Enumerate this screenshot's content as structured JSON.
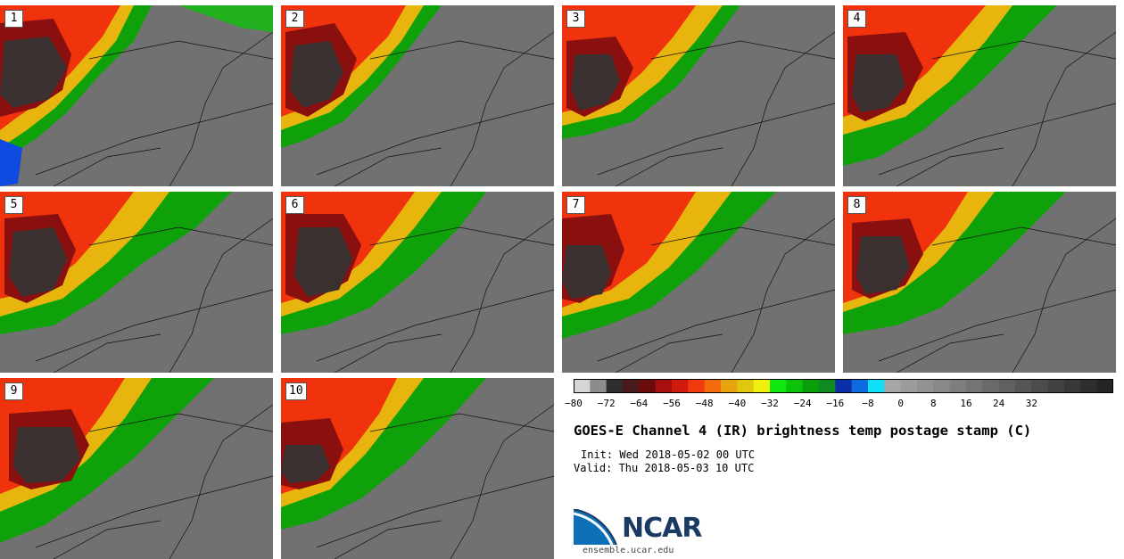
{
  "panels": [
    {
      "label": "1"
    },
    {
      "label": "2"
    },
    {
      "label": "3"
    },
    {
      "label": "4"
    },
    {
      "label": "5"
    },
    {
      "label": "6"
    },
    {
      "label": "7"
    },
    {
      "label": "8"
    },
    {
      "label": "9"
    },
    {
      "label": "10"
    }
  ],
  "colorbar": {
    "colors": [
      "#d6d6d6",
      "#8c8c8c",
      "#2e2e2e",
      "#4a1a1a",
      "#6b0b0b",
      "#a80e0e",
      "#d11a0e",
      "#f23a0d",
      "#f26a0a",
      "#e8a40d",
      "#e0c80f",
      "#f0f00e",
      "#0ee80e",
      "#0ac20a",
      "#0a9f0a",
      "#0e8a1e",
      "#0c2fa8",
      "#0e6ae0",
      "#0ee0f5",
      "#a6a6a6",
      "#9c9c9c",
      "#929292",
      "#888888",
      "#7e7e7e",
      "#747474",
      "#6a6a6a",
      "#606060",
      "#565656",
      "#4c4c4c",
      "#424242",
      "#383838",
      "#2e2e2e",
      "#242424"
    ],
    "ticks": [
      "−80",
      "−72",
      "−64",
      "−56",
      "−48",
      "−40",
      "−32",
      "−24",
      "−16",
      "−8",
      "0",
      "8",
      "16",
      "24",
      "32"
    ]
  },
  "title": "GOES-E Channel 4 (IR) brightness temp postage stamp (C)",
  "init": "Init: Wed 2018-05-02 00 UTC",
  "valid": "Valid: Thu 2018-05-03 10 UTC",
  "logo": {
    "text": "NCAR",
    "url": "ensemble.ucar.edu"
  }
}
